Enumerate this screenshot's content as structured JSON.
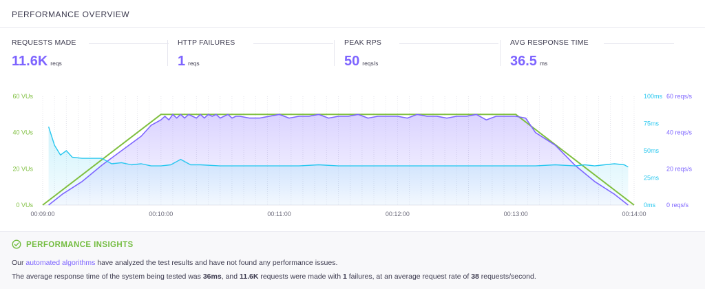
{
  "header": {
    "title": "PERFORMANCE OVERVIEW"
  },
  "metrics": [
    {
      "label": "REQUESTS MADE",
      "value": "11.6K",
      "unit": "reqs"
    },
    {
      "label": "HTTP FAILURES",
      "value": "1",
      "unit": "reqs"
    },
    {
      "label": "PEAK RPS",
      "value": "50",
      "unit": "reqs/s"
    },
    {
      "label": "AVG RESPONSE TIME",
      "value": "36.5",
      "unit": "ms"
    }
  ],
  "colors": {
    "vus": "#7fbf3f",
    "rps": "#7d64ff",
    "response": "#27c7ef",
    "text": "#3d3b4f"
  },
  "chart_data": {
    "type": "line",
    "x_tick_labels": [
      "00:09:00",
      "00:10:00",
      "00:11:00",
      "00:12:00",
      "00:13:00",
      "00:14:00"
    ],
    "x_range_seconds": [
      0,
      300
    ],
    "axes": {
      "vus": {
        "ticks": [
          "0 VUs",
          "20 VUs",
          "40 VUs",
          "60 VUs"
        ],
        "range": [
          0,
          60
        ]
      },
      "response": {
        "ticks": [
          "0ms",
          "25ms",
          "50ms",
          "75ms",
          "100ms"
        ],
        "range": [
          0,
          100
        ]
      },
      "rps": {
        "ticks": [
          "0 reqs/s",
          "20 reqs/s",
          "40 reqs/s",
          "60 reqs/s"
        ],
        "range": [
          0,
          60
        ]
      }
    },
    "grid": "vertical-dotted",
    "series": [
      {
        "axis": "vus",
        "x": [
          0,
          60,
          300
        ],
        "values": [
          0,
          50,
          50
        ],
        "x_full": [
          0,
          60,
          240,
          300
        ],
        "values_full": [
          0,
          50,
          50,
          0
        ]
      },
      {
        "axis": "rps",
        "x": [
          3,
          10,
          20,
          30,
          40,
          45,
          50,
          55,
          60,
          62,
          64,
          66,
          68,
          70,
          72,
          74,
          76,
          78,
          80,
          82,
          84,
          86,
          88,
          90,
          92,
          94,
          96,
          98,
          100,
          105,
          110,
          115,
          120,
          125,
          130,
          135,
          140,
          145,
          150,
          155,
          160,
          165,
          170,
          175,
          180,
          185,
          190,
          195,
          200,
          205,
          210,
          215,
          220,
          225,
          230,
          235,
          240,
          245,
          250,
          260,
          270,
          280,
          290,
          297
        ],
        "values": [
          0,
          6,
          13,
          22,
          30,
          34,
          38,
          44,
          47,
          49,
          47,
          50,
          48,
          50,
          48,
          50,
          49,
          48,
          50,
          48,
          50,
          49,
          50,
          48,
          49,
          50,
          48,
          49,
          49,
          48,
          48,
          49,
          50,
          48,
          49,
          49,
          50,
          48,
          49,
          49,
          50,
          48,
          49,
          49,
          49,
          48,
          50,
          49,
          49,
          48,
          49,
          49,
          50,
          47,
          49,
          49,
          49,
          48,
          40,
          33,
          22,
          13,
          6,
          0
        ]
      },
      {
        "axis": "response",
        "x": [
          3,
          6,
          9,
          12,
          15,
          20,
          25,
          30,
          35,
          40,
          45,
          50,
          55,
          60,
          65,
          70,
          75,
          80,
          90,
          100,
          110,
          120,
          130,
          140,
          150,
          160,
          170,
          180,
          190,
          200,
          210,
          220,
          230,
          240,
          250,
          260,
          270,
          275,
          280,
          285,
          290,
          295,
          297
        ],
        "values": [
          72,
          55,
          46,
          50,
          44,
          43,
          43,
          43,
          38,
          39,
          37,
          38,
          36,
          36,
          37,
          42,
          37,
          37,
          36,
          36,
          36,
          36,
          36,
          37,
          36,
          36,
          36,
          36,
          36,
          36,
          36,
          36,
          36,
          36,
          36,
          37,
          36,
          37,
          36,
          37,
          38,
          37,
          35
        ]
      }
    ]
  },
  "insights": {
    "title": "PERFORMANCE INSIGHTS",
    "line1_pre": "Our ",
    "line1_link": "automated algorithms",
    "line1_post": " have analyzed the test results and have not found any performance issues.",
    "line2_a": "The average response time of the system being tested was ",
    "line2_b": "36ms",
    "line2_c": ", and ",
    "line2_d": "11.6K",
    "line2_e": " requests were made with ",
    "line2_f": "1",
    "line2_g": " failures, at an average request rate of ",
    "line2_h": "38",
    "line2_i": " requests/second."
  }
}
